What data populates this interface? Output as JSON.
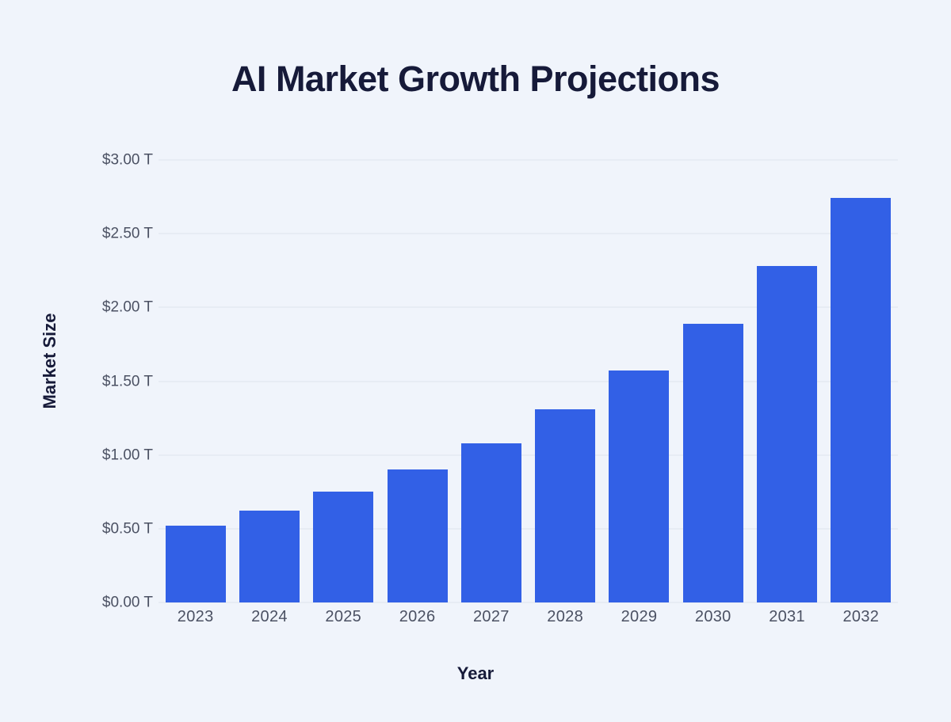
{
  "chart_data": {
    "type": "bar",
    "title": "AI Market Growth Projections",
    "xlabel": "Year",
    "ylabel": "Market Size",
    "categories": [
      "2023",
      "2024",
      "2025",
      "2026",
      "2027",
      "2028",
      "2029",
      "2030",
      "2031",
      "2032"
    ],
    "values": [
      0.52,
      0.62,
      0.75,
      0.9,
      1.08,
      1.31,
      1.57,
      1.89,
      2.28,
      2.74
    ],
    "value_unit": "$ trillions",
    "ylim": [
      0,
      3.0
    ],
    "ytick_step": 0.5,
    "ytick_labels": [
      "$0.00 T",
      "$0.50 T",
      "$1.00 T",
      "$1.50 T",
      "$2.00 T",
      "$2.50 T",
      "$3.00 T"
    ],
    "grid": true,
    "legend": false,
    "colors": {
      "bar": "#3260E6",
      "background": "#F0F4FB",
      "gridline": "#E7ECF4",
      "tick_label": "#4B5163",
      "title": "#161A39"
    }
  }
}
